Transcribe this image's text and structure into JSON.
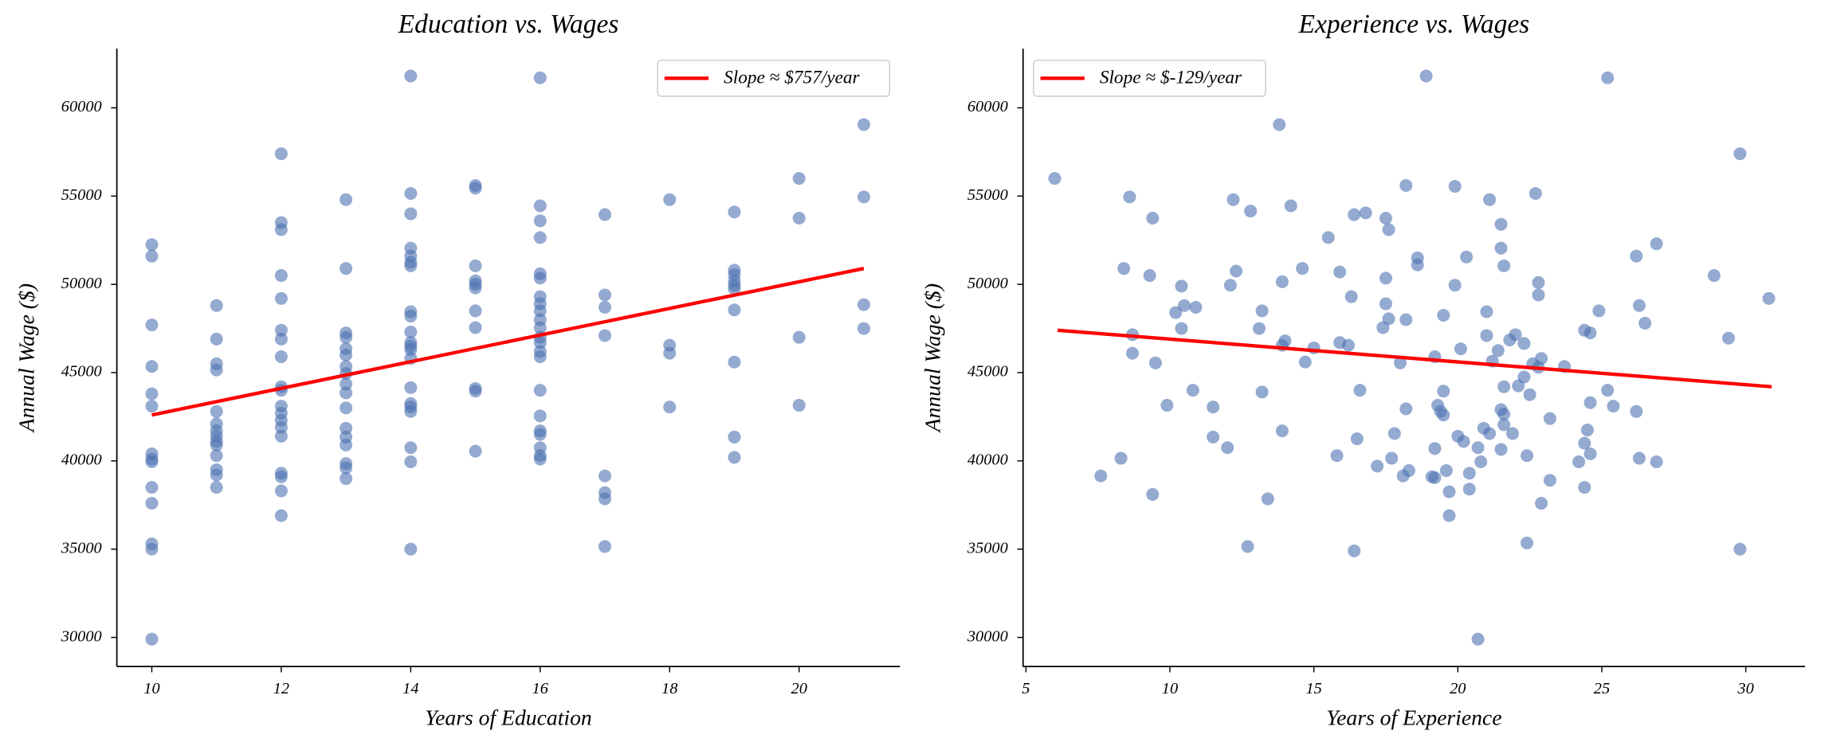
{
  "chart_data": [
    {
      "type": "scatter",
      "title": "Education vs. Wages",
      "xlabel": "Years of Education",
      "ylabel": "Annual Wage ($)",
      "xlim": [
        9.46,
        21.56
      ],
      "ylim": [
        28350,
        63350
      ],
      "xticks": [
        10,
        12,
        14,
        16,
        18,
        20
      ],
      "yticks": [
        30000,
        35000,
        40000,
        45000,
        50000,
        55000,
        60000
      ],
      "legend": "upper right",
      "series": [
        {
          "color": "#4c72b0",
          "opacity": 0.6,
          "x": [
            10,
            10,
            10,
            10,
            10,
            10,
            10,
            10,
            10,
            10,
            10,
            10,
            10,
            10,
            11,
            11,
            11,
            11,
            11,
            11,
            11,
            11,
            11,
            11,
            11,
            11,
            11,
            11,
            12,
            12,
            12,
            12,
            12,
            12,
            12,
            12,
            12,
            12,
            12,
            12,
            12,
            12,
            12,
            12,
            12,
            12,
            12,
            13,
            13,
            13,
            13,
            13,
            13,
            13,
            13,
            13,
            13,
            13,
            13,
            13,
            13,
            13,
            13,
            13,
            14,
            14,
            14,
            14,
            14,
            14,
            14,
            14,
            14,
            14,
            14,
            14,
            14,
            14,
            14,
            14,
            14,
            14,
            14,
            14,
            14,
            15,
            15,
            15,
            15,
            15,
            15,
            15,
            15,
            15,
            15,
            15,
            16,
            16,
            16,
            16,
            16,
            16,
            16,
            16,
            16,
            16,
            16,
            16,
            16,
            16,
            16,
            16,
            16,
            16,
            16,
            16,
            16,
            16,
            17,
            17,
            17,
            17,
            17,
            17,
            17,
            17,
            18,
            18,
            18,
            18,
            19,
            19,
            19,
            19,
            19,
            19,
            19,
            19,
            19,
            19,
            20,
            20,
            20,
            20,
            21,
            21,
            21,
            21
          ],
          "values": [
            52250,
            51600,
            47700,
            45350,
            43800,
            43100,
            40400,
            40100,
            39950,
            38500,
            37600,
            35300,
            35000,
            29900,
            48800,
            46900,
            45500,
            45150,
            42800,
            42100,
            41700,
            41400,
            41100,
            40900,
            40300,
            39500,
            39200,
            38500,
            57400,
            53500,
            53100,
            50500,
            49200,
            47400,
            46900,
            45900,
            44200,
            44000,
            43100,
            42700,
            42300,
            41900,
            41400,
            39300,
            39100,
            38300,
            36900,
            54800,
            50900,
            47250,
            47000,
            46350,
            46000,
            45350,
            44950,
            44350,
            43850,
            43000,
            41850,
            41350,
            40900,
            39850,
            39600,
            39000,
            61800,
            55150,
            54000,
            52050,
            51600,
            51250,
            51050,
            48450,
            48200,
            47300,
            46700,
            46500,
            46300,
            45800,
            44150,
            43250,
            43050,
            42800,
            40750,
            39950,
            35000,
            55600,
            55450,
            51050,
            50200,
            50000,
            49800,
            48500,
            47550,
            44100,
            43950,
            40550,
            61700,
            54450,
            53600,
            52650,
            50600,
            50350,
            49300,
            48900,
            48500,
            48000,
            47550,
            47000,
            46700,
            46200,
            45900,
            44000,
            42550,
            41700,
            41500,
            40750,
            40300,
            40100,
            53950,
            49400,
            48700,
            47100,
            39150,
            38200,
            37850,
            35150,
            54800,
            46550,
            46100,
            43050,
            54100,
            50800,
            50550,
            50200,
            49950,
            49750,
            48550,
            45600,
            41350,
            40200,
            56000,
            53750,
            47000,
            43150,
            59050,
            54950,
            48850,
            47500
          ]
        },
        {
          "type": "line",
          "name": "Slope ≈ $757/year",
          "color": "#ff0000",
          "x": [
            10,
            21
          ],
          "values": [
            42600,
            50900
          ]
        }
      ]
    },
    {
      "type": "scatter",
      "title": "Experience vs. Wages",
      "xlabel": "Years of Experience",
      "ylabel": "Annual Wage ($)",
      "xlim": [
        4.9,
        32.06
      ],
      "ylim": [
        28350,
        63350
      ],
      "xticks": [
        5,
        10,
        15,
        20,
        25,
        30
      ],
      "yticks": [
        30000,
        35000,
        40000,
        45000,
        50000,
        55000,
        60000
      ],
      "legend": "upper left",
      "series": [
        {
          "color": "#4c72b0",
          "opacity": 0.6,
          "x": [
            6.0,
            8.6,
            8.4,
            8.7,
            8.7,
            9.4,
            9.3,
            9.5,
            9.4,
            8.3,
            7.6,
            9.9,
            10.2,
            10.5,
            10.4,
            10.4,
            10.9,
            10.8,
            11.5,
            11.5,
            12.0,
            12.1,
            12.3,
            12.2,
            12.8,
            12.7,
            13.1,
            13.2,
            13.2,
            13.4,
            13.8,
            13.9,
            14.0,
            13.9,
            13.9,
            14.2,
            14.6,
            14.7,
            15.0,
            15.5,
            15.9,
            15.9,
            15.8,
            16.3,
            16.2,
            16.4,
            16.8,
            16.6,
            16.5,
            16.4,
            17.5,
            17.6,
            17.5,
            17.5,
            17.4,
            17.6,
            17.8,
            17.7,
            17.2,
            18.2,
            18.2,
            18.0,
            18.2,
            18.1,
            18.3,
            18.6,
            18.6,
            18.9,
            19.2,
            19.3,
            19.4,
            19.5,
            19.5,
            19.5,
            19.2,
            19.1,
            19.2,
            19.6,
            19.7,
            19.7,
            19.9,
            19.9,
            20.0,
            20.1,
            20.3,
            20.2,
            20.4,
            20.4,
            20.7,
            20.7,
            20.8,
            20.9,
            21.0,
            21.0,
            21.1,
            21.1,
            21.2,
            21.4,
            21.5,
            21.5,
            21.5,
            21.6,
            21.6,
            21.6,
            21.5,
            21.6,
            21.8,
            22.0,
            21.9,
            22.1,
            22.3,
            22.3,
            22.5,
            22.4,
            22.4,
            22.6,
            22.7,
            22.8,
            22.8,
            22.8,
            22.9,
            22.9,
            23.2,
            23.2,
            23.7,
            24.2,
            24.4,
            24.4,
            24.4,
            24.6,
            24.5,
            24.6,
            24.6,
            24.9,
            25.2,
            25.2,
            25.4,
            26.3,
            26.2,
            26.2,
            26.9,
            26.5,
            26.3,
            26.9,
            28.9,
            29.4,
            29.8,
            29.8,
            30.8
          ],
          "values": [
            56000,
            54950,
            50900,
            47150,
            46100,
            53750,
            50500,
            45550,
            38100,
            40150,
            39150,
            43150,
            48400,
            48800,
            47500,
            49900,
            48700,
            44000,
            43050,
            41350,
            40750,
            49950,
            50750,
            54800,
            54150,
            35150,
            47500,
            48500,
            43900,
            37850,
            59050,
            50150,
            46800,
            46550,
            41700,
            54450,
            50900,
            45600,
            46400,
            52650,
            50700,
            46700,
            40300,
            49300,
            46550,
            53950,
            54050,
            44000,
            41250,
            34900,
            53750,
            53100,
            50350,
            48900,
            47550,
            48050,
            41550,
            40150,
            39700,
            55600,
            48000,
            45550,
            42950,
            39150,
            39450,
            51500,
            51100,
            61800,
            45900,
            43150,
            42800,
            42600,
            43950,
            48250,
            40700,
            39100,
            39050,
            39450,
            38250,
            36900,
            55550,
            49950,
            41400,
            46350,
            51550,
            41100,
            39300,
            38400,
            40750,
            29900,
            39950,
            41850,
            47100,
            48450,
            54800,
            41550,
            45650,
            46250,
            52050,
            53400,
            42900,
            44200,
            42650,
            42050,
            40650,
            51050,
            46850,
            47150,
            41550,
            44250,
            46650,
            44750,
            43750,
            40300,
            35350,
            45500,
            55150,
            45300,
            49400,
            50100,
            45800,
            37600,
            42400,
            38900,
            45350,
            39950,
            41000,
            38500,
            47400,
            47250,
            41750,
            43300,
            40400,
            48500,
            61700,
            44000,
            43100,
            48800,
            42800,
            51600,
            52300,
            47800,
            40150,
            39950,
            50500,
            46950,
            57400,
            35000,
            49200
          ]
        },
        {
          "type": "line",
          "name": "Slope ≈ $-129/year",
          "color": "#ff0000",
          "x": [
            6.1,
            30.9
          ],
          "values": [
            47400,
            44200
          ]
        }
      ]
    }
  ]
}
